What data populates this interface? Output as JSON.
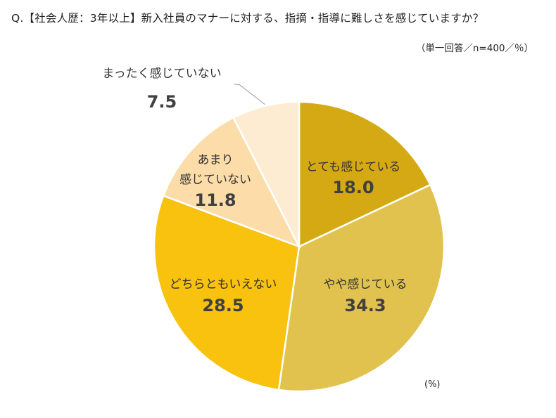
{
  "title": "Q.【社会人歴：3年以上】新入社員のマナーに対する、指摘・指導に難しさを感じていますか？",
  "subtitle": "（単一回答／n=400／％）",
  "unit": "(%)",
  "chart_data": {
    "type": "pie",
    "start_angle_deg": 0,
    "direction": "clockwise",
    "slices": [
      {
        "label": "とても感じている",
        "lines": [
          "とても感じている"
        ],
        "value": 18.0,
        "display": "18.0",
        "color": "#D4A914"
      },
      {
        "label": "やや感じている",
        "lines": [
          "やや感じている"
        ],
        "value": 34.3,
        "display": "34.3",
        "color": "#E2C24E"
      },
      {
        "label": "どちらともいえない",
        "lines": [
          "どちらともいえない"
        ],
        "value": 28.5,
        "display": "28.5",
        "color": "#F8C20E"
      },
      {
        "label": "あまり感じていない",
        "lines": [
          "あまり",
          "感じていない"
        ],
        "value": 11.8,
        "display": "11.8",
        "color": "#FCDDAA"
      },
      {
        "label": "まったく感じていない",
        "lines": [
          "まったく感じていない"
        ],
        "value": 7.5,
        "display": "7.5",
        "color": "#FDEBD2"
      }
    ]
  }
}
